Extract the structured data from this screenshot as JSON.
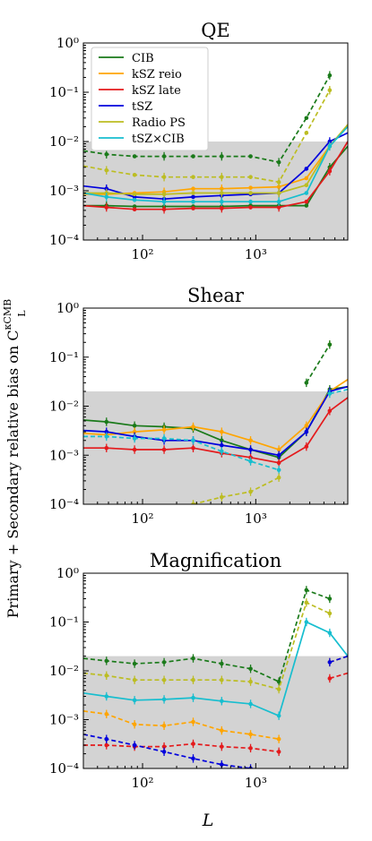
{
  "figure": {
    "ylabel": "Primary + Secondary relative bias on C",
    "ylabel_sup": "κCMB",
    "ylabel_sub": "L",
    "xlabel": "L",
    "x_tick_labels": [
      "10²",
      "10³"
    ],
    "y_tick_labels": [
      "10⁻⁴",
      "10⁻³",
      "10⁻²",
      "10⁻¹",
      "10⁰"
    ]
  },
  "legend": [
    {
      "label": "CIB",
      "color": "#1a7a1a"
    },
    {
      "label": "kSZ reio",
      "color": "#ffa500"
    },
    {
      "label": "kSZ late",
      "color": "#e41a1c"
    },
    {
      "label": "tSZ",
      "color": "#0000dd"
    },
    {
      "label": "Radio PS",
      "color": "#bcbd22"
    },
    {
      "label": "tSZ×CIB",
      "color": "#17becf"
    }
  ],
  "chart_data": [
    {
      "type": "line",
      "title": "QE",
      "x_scale": "log",
      "y_scale": "log",
      "xlim": [
        30,
        6500
      ],
      "ylim": [
        0.0001,
        1
      ],
      "shaded_band": 0.01,
      "x": [
        30,
        48,
        85,
        155,
        280,
        500,
        900,
        1600,
        2800,
        4500,
        6500
      ],
      "series": [
        {
          "name": "CIB",
          "color": "#1a7a1a",
          "style": "solid",
          "values": [
            0.0005,
            0.0005,
            0.00048,
            0.00048,
            0.00048,
            0.00048,
            0.0005,
            0.0005,
            0.0005,
            0.003,
            0.008
          ]
        },
        {
          "name": "kSZ reio",
          "color": "#ffa500",
          "style": "solid",
          "values": [
            0.00085,
            0.00085,
            0.0009,
            0.00095,
            0.0011,
            0.0011,
            0.00115,
            0.0012,
            0.0018,
            0.008,
            0.022
          ]
        },
        {
          "name": "kSZ late",
          "color": "#e41a1c",
          "style": "solid",
          "values": [
            0.0005,
            0.00046,
            0.00042,
            0.00042,
            0.00044,
            0.00044,
            0.00046,
            0.00046,
            0.0006,
            0.0025,
            0.01
          ]
        },
        {
          "name": "tSZ",
          "color": "#0000dd",
          "style": "solid",
          "values": [
            0.00125,
            0.0011,
            0.00075,
            0.00068,
            0.00075,
            0.0008,
            0.00085,
            0.0009,
            0.0028,
            0.01,
            0.015
          ]
        },
        {
          "name": "Radio PS",
          "color": "#bcbd22",
          "style": "solid",
          "values": [
            0.0009,
            0.0009,
            0.00085,
            0.00085,
            0.0009,
            0.0009,
            0.0009,
            0.0009,
            0.0013,
            0.008,
            0.022
          ]
        },
        {
          "name": "tSZ×CIB",
          "color": "#17becf",
          "style": "solid",
          "values": [
            0.0009,
            0.00075,
            0.00065,
            0.0006,
            0.0006,
            0.0006,
            0.0006,
            0.0006,
            0.0009,
            0.008,
            0.02
          ]
        },
        {
          "name": "CIB",
          "color": "#1a7a1a",
          "style": "dashed",
          "values": [
            0.0065,
            0.0055,
            0.005,
            0.005,
            0.005,
            0.005,
            0.005,
            0.0038,
            0.03,
            0.22,
            null
          ]
        },
        {
          "name": "Radio PS",
          "color": "#bcbd22",
          "style": "dashed",
          "values": [
            0.0032,
            0.0026,
            0.0021,
            0.0019,
            0.0019,
            0.0019,
            0.0019,
            0.0015,
            0.015,
            0.11,
            null
          ]
        }
      ]
    },
    {
      "type": "line",
      "title": "Shear",
      "x_scale": "log",
      "y_scale": "log",
      "xlim": [
        30,
        6500
      ],
      "ylim": [
        0.0001,
        1
      ],
      "shaded_band": 0.02,
      "x": [
        30,
        48,
        85,
        155,
        280,
        500,
        900,
        1600,
        2800,
        4500,
        6500
      ],
      "series": [
        {
          "name": "CIB",
          "color": "#1a7a1a",
          "style": "solid",
          "values": [
            0.0052,
            0.0048,
            0.004,
            0.0038,
            0.0035,
            0.002,
            0.0013,
            0.0009,
            0.003,
            0.022,
            0.025
          ]
        },
        {
          "name": "kSZ reio",
          "color": "#ffa500",
          "style": "solid",
          "values": [
            0.0028,
            0.0026,
            0.003,
            0.0033,
            0.0038,
            0.003,
            0.002,
            0.0013,
            0.004,
            0.02,
            0.035
          ]
        },
        {
          "name": "kSZ late",
          "color": "#e41a1c",
          "style": "solid",
          "values": [
            0.0014,
            0.0014,
            0.0013,
            0.0013,
            0.0014,
            0.0011,
            0.0009,
            0.0007,
            0.0015,
            0.008,
            0.015
          ]
        },
        {
          "name": "tSZ",
          "color": "#0000dd",
          "style": "solid",
          "values": [
            0.0032,
            0.003,
            0.0024,
            0.002,
            0.002,
            0.0016,
            0.0013,
            0.001,
            0.003,
            0.02,
            0.025
          ]
        },
        {
          "name": "tSZ×CIB",
          "color": "#17becf",
          "style": "dashed",
          "values": [
            0.0024,
            0.0024,
            0.0022,
            0.0022,
            0.002,
            0.0012,
            0.00075,
            0.0005,
            null,
            0.018,
            0.022
          ]
        },
        {
          "name": "Radio PS",
          "color": "#bcbd22",
          "style": "dashed",
          "values": [
            null,
            null,
            null,
            null,
            0.0001,
            0.00014,
            0.00018,
            0.00035,
            null,
            0.18,
            null
          ]
        },
        {
          "name": "CIB",
          "color": "#1a7a1a",
          "style": "dashed",
          "values": [
            null,
            null,
            null,
            null,
            null,
            null,
            null,
            null,
            0.03,
            0.18,
            null
          ]
        }
      ]
    },
    {
      "type": "line",
      "title": "Magnification",
      "x_scale": "log",
      "y_scale": "log",
      "xlim": [
        30,
        6500
      ],
      "ylim": [
        0.0001,
        1
      ],
      "shaded_band": 0.02,
      "x": [
        30,
        48,
        85,
        155,
        280,
        500,
        900,
        1600,
        2800,
        4500,
        6500
      ],
      "series": [
        {
          "name": "CIB",
          "color": "#1a7a1a",
          "style": "dashed",
          "values": [
            0.018,
            0.016,
            0.014,
            0.015,
            0.018,
            0.014,
            0.011,
            0.006,
            0.45,
            0.3,
            null
          ]
        },
        {
          "name": "Radio PS",
          "color": "#bcbd22",
          "style": "dashed",
          "values": [
            0.009,
            0.008,
            0.0065,
            0.0065,
            0.0065,
            0.0065,
            0.006,
            0.0042,
            0.25,
            0.15,
            null
          ]
        },
        {
          "name": "tSZ×CIB",
          "color": "#17becf",
          "style": "solid",
          "values": [
            0.0035,
            0.003,
            0.0025,
            0.0026,
            0.0028,
            0.0024,
            0.0021,
            0.0012,
            0.1,
            0.06,
            0.02
          ]
        },
        {
          "name": "kSZ reio",
          "color": "#ffa500",
          "style": "dashed",
          "values": [
            0.0015,
            0.0013,
            0.0008,
            0.00075,
            0.0009,
            0.0006,
            0.0005,
            0.0004,
            null,
            0.015,
            0.02
          ]
        },
        {
          "name": "kSZ late",
          "color": "#e41a1c",
          "style": "dashed",
          "values": [
            0.0003,
            0.0003,
            0.00028,
            0.00028,
            0.00032,
            0.00028,
            0.00026,
            0.00022,
            null,
            0.007,
            0.009
          ]
        },
        {
          "name": "tSZ",
          "color": "#0000dd",
          "style": "dashed",
          "values": [
            0.0005,
            0.0004,
            0.0003,
            0.00022,
            0.00016,
            0.00012,
            0.0001,
            null,
            null,
            0.015,
            0.02
          ]
        }
      ]
    }
  ]
}
